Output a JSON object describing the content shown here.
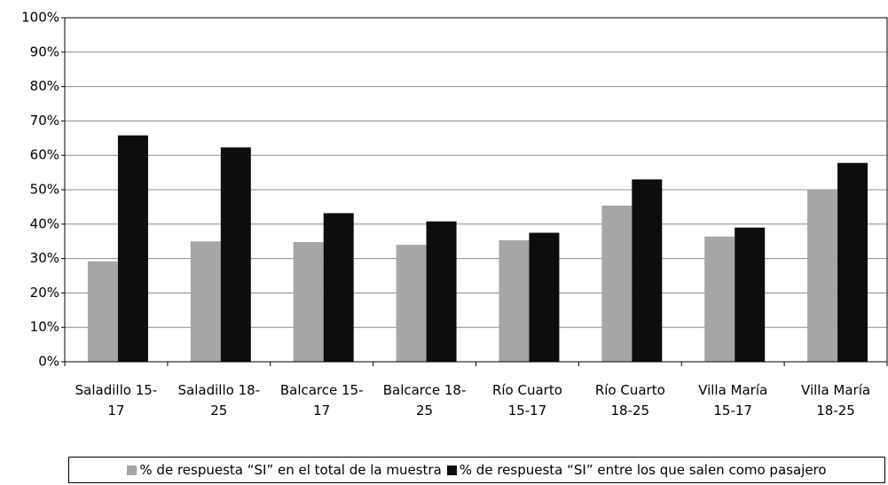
{
  "chart_data": {
    "type": "bar",
    "categories": [
      "Saladillo 15-17",
      "Saladillo 18-25",
      "Balcarce 15-17",
      "Balcarce 18-25",
      "Río Cuarto 15-17",
      "Río Cuarto 18-25",
      "Villa María 15-17",
      "Villa María 18-25"
    ],
    "series": [
      {
        "name": "% de respuesta “SI” en el total de la muestra",
        "color": "#a6a6a6",
        "values": [
          29.2,
          35,
          34.8,
          34,
          35.3,
          45.4,
          36.4,
          50
        ]
      },
      {
        "name": "% de respuesta “SI” entre los que salen como pasajero",
        "color": "#0d0d0d",
        "values": [
          65.8,
          62.3,
          43.2,
          40.8,
          37.5,
          53,
          39,
          57.8
        ]
      }
    ],
    "ylim": [
      0,
      100
    ],
    "yticks": [
      {
        "value": 0,
        "label": "0%"
      },
      {
        "value": 10,
        "label": "10%"
      },
      {
        "value": 20,
        "label": "20%"
      },
      {
        "value": 30,
        "label": "30%"
      },
      {
        "value": 40,
        "label": "40%"
      },
      {
        "value": 50,
        "label": "50%"
      },
      {
        "value": 60,
        "label": "60%"
      },
      {
        "value": 70,
        "label": "70%"
      },
      {
        "value": 80,
        "label": "80%"
      },
      {
        "value": 90,
        "label": "90%"
      },
      {
        "value": 100,
        "label": "100%"
      }
    ],
    "grid": true,
    "legend": "bottom"
  }
}
